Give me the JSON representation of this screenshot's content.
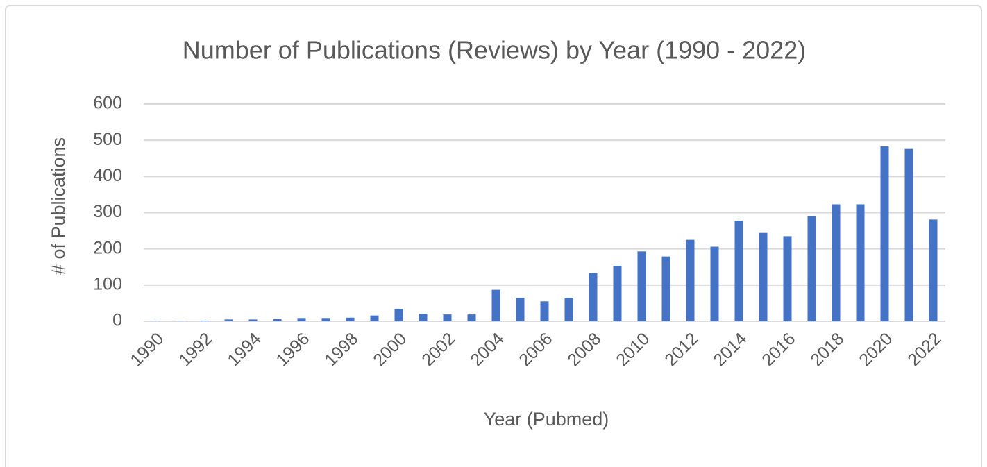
{
  "chart_data": {
    "type": "bar",
    "title": "Number of Publications (Reviews) by Year (1990 - 2022)",
    "x_label": "Year (Pubmed)",
    "y_label": "# of Publications",
    "categories": [
      "1990",
      null,
      "1992",
      null,
      "1994",
      null,
      "1996",
      null,
      "1998",
      null,
      "2000",
      null,
      "2002",
      null,
      "2004",
      null,
      "2006",
      null,
      "2008",
      null,
      "2010",
      null,
      "2012",
      null,
      "2014",
      null,
      "2016",
      null,
      "2018",
      null,
      "2020",
      null,
      "2022"
    ],
    "values": [
      1,
      1,
      2,
      5,
      5,
      6,
      9,
      9,
      10,
      16,
      34,
      21,
      19,
      19,
      87,
      65,
      55,
      65,
      133,
      153,
      193,
      179,
      225,
      206,
      278,
      244,
      235,
      290,
      323,
      323,
      483,
      476,
      281
    ],
    "color": "#4472c4",
    "ylim": [
      0,
      600
    ],
    "yticks": [
      0,
      100,
      200,
      300,
      400,
      500,
      600
    ],
    "grid": true
  }
}
